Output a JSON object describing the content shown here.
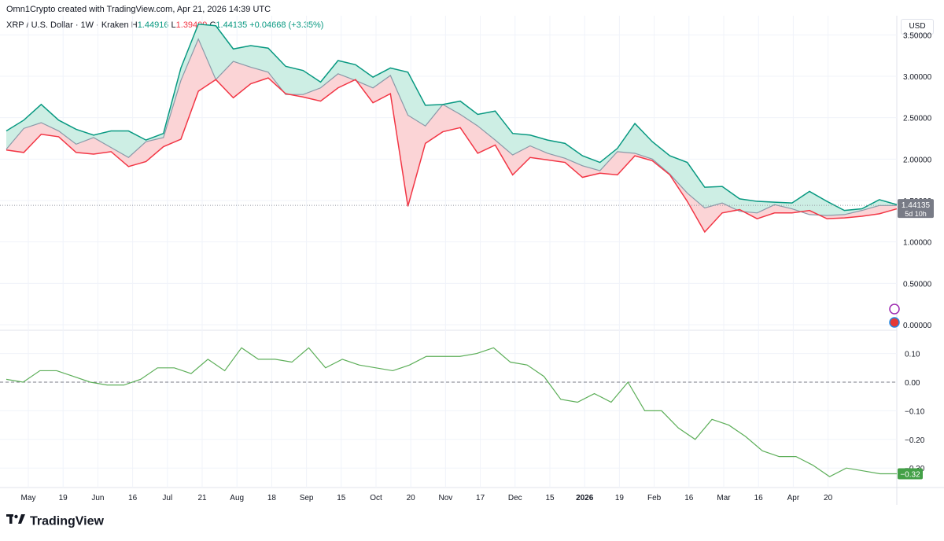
{
  "header": {
    "credit": "Omn1Crypto created with TradingView.com, Apr 21, 2026 14:39 UTC"
  },
  "legend": {
    "symbol": "XRP / U.S. Dollar · 1W · Kraken",
    "h_label": "H",
    "h_value": "1.44916",
    "l_label": "L",
    "l_value": "1.39409",
    "c_label": "C",
    "c_value": "1.44135",
    "change": "+0.04668 (+3.35%)"
  },
  "currency_button": "USD",
  "footer": {
    "brand": "TradingView"
  },
  "price_badge": {
    "value": "1.44135",
    "countdown": "5d 10h"
  },
  "osc_badge": {
    "value": "−0.32"
  },
  "colors": {
    "upper": "#089981",
    "lower": "#f23645",
    "mid": "#8a99a8",
    "osc": "#5cae58",
    "fill_up": "#cdeee4",
    "fill_down": "#fbd4d6"
  },
  "chart_data": [
    {
      "type": "area",
      "panel": "price",
      "x_tick_labels": [
        "May",
        "19",
        "Jun",
        "16",
        "Jul",
        "21",
        "Aug",
        "18",
        "Sep",
        "15",
        "Oct",
        "20",
        "Nov",
        "17",
        "Dec",
        "15",
        "2026",
        "19",
        "Feb",
        "16",
        "Mar",
        "16",
        "Apr",
        "20"
      ],
      "y_tick_labels": [
        "0.00000",
        "0.50000",
        "1.00000",
        "1.50000",
        "2.00000",
        "2.50000",
        "3.00000",
        "3.50000"
      ],
      "ylim": [
        0,
        3.6
      ],
      "series": [
        {
          "values": [
            2.34,
            2.47,
            2.66,
            2.47,
            2.36,
            2.29,
            2.34,
            2.34,
            2.23,
            2.31,
            3.1,
            3.63,
            3.61,
            3.33,
            3.37,
            3.34,
            3.12,
            3.07,
            2.93,
            3.19,
            3.14,
            2.99,
            3.1,
            3.05,
            2.65,
            2.66,
            2.7,
            2.54,
            2.58,
            2.31,
            2.29,
            2.23,
            2.19,
            2.04,
            1.96,
            2.13,
            2.43,
            2.21,
            2.04,
            1.96,
            1.66,
            1.67,
            1.52,
            1.49,
            1.48,
            1.47,
            1.61,
            1.49,
            1.38,
            1.4,
            1.51,
            1.45
          ]
        },
        {
          "values": [
            2.12,
            2.37,
            2.44,
            2.34,
            2.18,
            2.26,
            2.14,
            2.02,
            2.21,
            2.26,
            2.95,
            3.45,
            2.96,
            3.18,
            3.11,
            3.05,
            2.78,
            2.78,
            2.86,
            3.03,
            2.95,
            2.86,
            3.01,
            2.53,
            2.4,
            2.66,
            2.54,
            2.4,
            2.23,
            2.05,
            2.16,
            2.07,
            2.01,
            1.92,
            1.86,
            2.09,
            2.07,
            2.0,
            1.82,
            1.59,
            1.41,
            1.47,
            1.37,
            1.35,
            1.45,
            1.4,
            1.33,
            1.32,
            1.33,
            1.38,
            1.44,
            1.44
          ]
        },
        {
          "values": [
            2.11,
            2.08,
            2.3,
            2.27,
            2.08,
            2.06,
            2.09,
            1.91,
            1.97,
            2.15,
            2.24,
            2.82,
            2.96,
            2.74,
            2.91,
            2.98,
            2.79,
            2.75,
            2.7,
            2.86,
            2.96,
            2.68,
            2.79,
            1.43,
            2.19,
            2.33,
            2.38,
            2.07,
            2.17,
            1.81,
            2.02,
            1.99,
            1.96,
            1.78,
            1.83,
            1.81,
            2.04,
            1.98,
            1.81,
            1.49,
            1.12,
            1.35,
            1.39,
            1.28,
            1.35,
            1.35,
            1.38,
            1.28,
            1.29,
            1.31,
            1.34,
            1.4
          ]
        }
      ]
    },
    {
      "type": "line",
      "panel": "oscillator",
      "y_tick_labels": [
        "−0.30",
        "−0.20",
        "−0.10",
        "0.00",
        "0.10"
      ],
      "ylim": [
        -0.33,
        0.14
      ],
      "reference_line": 0,
      "series": [
        {
          "values": [
            0.01,
            0.0,
            0.04,
            0.04,
            0.02,
            0.0,
            -0.01,
            -0.01,
            0.01,
            0.05,
            0.05,
            0.03,
            0.08,
            0.04,
            0.12,
            0.08,
            0.08,
            0.07,
            0.12,
            0.05,
            0.08,
            0.06,
            0.05,
            0.04,
            0.06,
            0.09,
            0.09,
            0.09,
            0.1,
            0.12,
            0.07,
            0.06,
            0.02,
            -0.06,
            -0.07,
            -0.04,
            -0.07,
            0.0,
            -0.1,
            -0.1,
            -0.16,
            -0.2,
            -0.13,
            -0.15,
            -0.19,
            -0.24,
            -0.26,
            -0.26,
            -0.29,
            -0.33,
            -0.3,
            -0.31,
            -0.32,
            -0.32
          ]
        }
      ]
    }
  ]
}
